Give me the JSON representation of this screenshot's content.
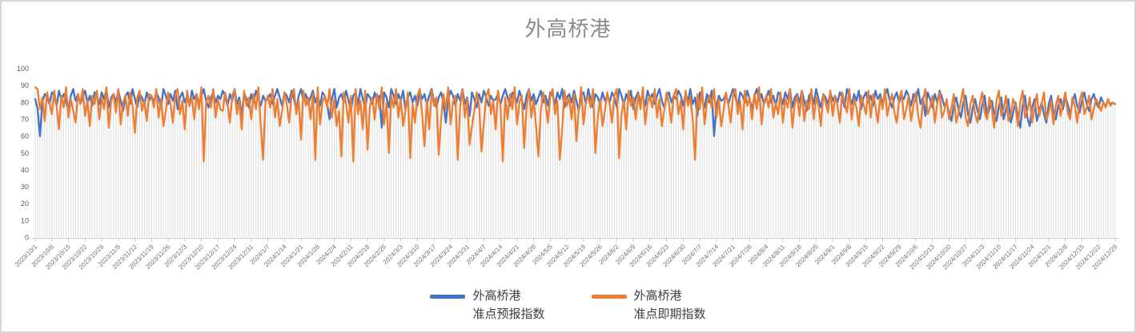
{
  "title": "外高桥港",
  "chart_data": {
    "type": "line",
    "title": "外高桥港",
    "xlabel": "",
    "ylabel": "",
    "ylim": [
      0,
      100
    ],
    "y_ticks": [
      0,
      10,
      20,
      30,
      40,
      50,
      60,
      70,
      80,
      90,
      100
    ],
    "grid": "vertical-droplines-per-point",
    "legend_position": "bottom",
    "x_frequency": "daily",
    "x_tick_interval_days": 7,
    "x_tick_labels": [
      "2023/10/1",
      "2023/10/8",
      "2023/10/15",
      "2023/10/22",
      "2023/10/29",
      "2023/11/5",
      "2023/11/12",
      "2023/11/19",
      "2023/11/26",
      "2023/12/3",
      "2023/12/10",
      "2023/12/17",
      "2023/12/24",
      "2023/12/31",
      "2024/1/7",
      "2024/1/14",
      "2024/1/21",
      "2024/1/28",
      "2024/2/4",
      "2024/2/11",
      "2024/2/18",
      "2024/2/25",
      "2024/3/3",
      "2024/3/10",
      "2024/3/17",
      "2024/3/24",
      "2024/3/31",
      "2024/4/7",
      "2024/4/14",
      "2024/4/21",
      "2024/4/28",
      "2024/5/5",
      "2024/5/12",
      "2024/5/19",
      "2024/5/26",
      "2024/6/2",
      "2024/6/9",
      "2024/6/16",
      "2024/6/23",
      "2024/6/30",
      "2024/7/7",
      "2024/7/14",
      "2024/7/21",
      "2024/7/28",
      "2024/8/4",
      "2024/8/11",
      "2024/8/18",
      "2024/8/25",
      "2024/9/1",
      "2024/9/8",
      "2024/9/15",
      "2024/9/22",
      "2024/9/29",
      "2024/10/6",
      "2024/10/13",
      "2024/10/20",
      "2024/10/27",
      "2024/11/3",
      "2024/11/10",
      "2024/11/17",
      "2024/11/24",
      "2024/12/1",
      "2024/12/8",
      "2024/12/15",
      "2024/12/22",
      "2024/12/29"
    ],
    "series": [
      {
        "name": "外高桥港 准点预报指数",
        "legend_line1": "外高桥港",
        "legend_line2": "准点预报指数",
        "color": "#4472C4",
        "values": [
          82,
          76,
          60,
          80,
          85,
          83,
          79,
          86,
          84,
          78,
          87,
          82,
          85,
          80,
          76,
          84,
          88,
          81,
          85,
          79,
          83,
          87,
          80,
          84,
          78,
          86,
          84,
          79,
          86,
          82,
          88,
          77,
          83,
          85,
          80,
          87,
          81,
          75,
          84,
          86,
          79,
          88,
          82,
          77,
          85,
          83,
          79,
          86,
          81,
          84,
          80,
          86,
          83,
          77,
          88,
          84,
          79,
          85,
          81,
          87,
          76,
          83,
          86,
          80,
          84,
          78,
          87,
          82,
          85,
          79,
          84,
          88,
          81,
          77,
          83,
          86,
          80,
          84,
          82,
          87,
          84,
          78,
          85,
          81,
          88,
          79,
          83,
          72,
          86,
          82,
          77,
          85,
          80,
          87,
          83,
          78,
          84,
          81,
          82,
          85,
          79,
          84,
          88,
          83,
          78,
          86,
          84,
          80,
          87,
          82,
          76,
          84,
          88,
          81,
          85,
          79,
          83,
          87,
          80,
          84,
          78,
          86,
          84,
          79,
          70,
          82,
          88,
          77,
          83,
          85,
          80,
          87,
          81,
          75,
          84,
          86,
          79,
          88,
          82,
          77,
          85,
          83,
          79,
          86,
          81,
          84,
          65,
          86,
          83,
          77,
          88,
          84,
          79,
          85,
          81,
          87,
          76,
          83,
          86,
          80,
          84,
          78,
          87,
          82,
          85,
          79,
          84,
          88,
          81,
          77,
          83,
          86,
          80,
          68,
          82,
          87,
          84,
          78,
          85,
          81,
          88,
          79,
          83,
          72,
          86,
          82,
          77,
          85,
          80,
          87,
          83,
          78,
          84,
          81,
          82,
          85,
          79,
          84,
          88,
          83,
          78,
          86,
          84,
          80,
          87,
          82,
          76,
          84,
          88,
          81,
          85,
          79,
          83,
          87,
          80,
          84,
          78,
          86,
          84,
          79,
          86,
          82,
          88,
          77,
          83,
          85,
          80,
          87,
          81,
          75,
          84,
          86,
          79,
          88,
          82,
          77,
          85,
          83,
          79,
          86,
          81,
          84,
          80,
          86,
          83,
          77,
          88,
          84,
          79,
          85,
          81,
          87,
          76,
          83,
          86,
          80,
          84,
          78,
          87,
          82,
          85,
          79,
          84,
          88,
          81,
          77,
          83,
          86,
          80,
          84,
          82,
          87,
          84,
          78,
          85,
          81,
          88,
          79,
          83,
          72,
          86,
          82,
          77,
          85,
          80,
          87,
          60,
          78,
          84,
          81,
          82,
          85,
          79,
          84,
          88,
          83,
          78,
          86,
          84,
          80,
          87,
          82,
          76,
          84,
          88,
          81,
          85,
          79,
          83,
          87,
          80,
          84,
          78,
          86,
          84,
          79,
          86,
          82,
          88,
          77,
          83,
          85,
          80,
          87,
          81,
          75,
          84,
          86,
          79,
          88,
          82,
          77,
          85,
          83,
          79,
          86,
          81,
          84,
          80,
          86,
          83,
          77,
          88,
          84,
          79,
          85,
          81,
          87,
          76,
          83,
          86,
          80,
          84,
          78,
          87,
          82,
          85,
          79,
          84,
          88,
          81,
          77,
          83,
          86,
          80,
          84,
          82,
          87,
          84,
          78,
          85,
          81,
          88,
          79,
          83,
          72,
          86,
          82,
          77,
          85,
          80,
          87,
          83,
          78,
          80,
          74,
          69,
          78,
          83,
          76,
          71,
          80,
          84,
          73,
          68,
          77,
          82,
          75,
          70,
          79,
          84,
          72,
          76,
          81,
          74,
          69,
          78,
          83,
          70,
          76,
          82,
          68,
          74,
          80,
          72,
          65,
          78,
          84,
          71,
          66,
          77,
          82,
          69,
          75,
          80,
          73,
          68,
          79,
          84,
          74,
          70,
          78,
          82,
          76,
          84,
          79,
          73,
          80,
          85,
          78,
          74,
          81,
          86,
          79,
          75,
          82,
          85,
          80,
          77,
          83,
          80,
          78,
          81,
          79,
          80,
          79
        ]
      },
      {
        "name": "外高桥港 准点即期指数",
        "legend_line1": "外高桥港",
        "legend_line2": "准点即期指数",
        "color": "#ED7D31",
        "values": [
          89,
          88,
          76,
          83,
          69,
          86,
          80,
          73,
          87,
          78,
          64,
          84,
          77,
          89,
          71,
          82,
          75,
          68,
          85,
          79,
          88,
          72,
          81,
          66,
          84,
          79,
          87,
          70,
          83,
          76,
          89,
          65,
          81,
          85,
          74,
          88,
          67,
          80,
          84,
          72,
          86,
          78,
          62,
          83,
          87,
          75,
          81,
          69,
          85,
          84,
          77,
          88,
          71,
          82,
          66,
          75,
          86,
          79,
          68,
          84,
          88,
          73,
          81,
          64,
          87,
          78,
          83,
          70,
          85,
          76,
          89,
          45,
          80,
          84,
          77,
          88,
          71,
          82,
          76,
          75,
          86,
          79,
          68,
          84,
          88,
          73,
          81,
          64,
          87,
          78,
          83,
          70,
          85,
          76,
          89,
          67,
          46,
          80,
          84,
          77,
          88,
          71,
          82,
          66,
          75,
          86,
          79,
          68,
          84,
          88,
          73,
          81,
          58,
          87,
          78,
          83,
          70,
          85,
          46,
          89,
          67,
          80,
          84,
          77,
          88,
          71,
          82,
          66,
          75,
          48,
          86,
          79,
          68,
          84,
          45,
          88,
          73,
          81,
          64,
          87,
          52,
          78,
          83,
          70,
          85,
          76,
          89,
          67,
          80,
          50,
          84,
          77,
          88,
          71,
          82,
          66,
          75,
          86,
          47,
          79,
          68,
          84,
          88,
          73,
          54,
          81,
          64,
          87,
          78,
          83,
          49,
          70,
          85,
          76,
          89,
          67,
          80,
          84,
          46,
          77,
          88,
          71,
          82,
          55,
          66,
          75,
          86,
          79,
          51,
          68,
          84,
          88,
          73,
          81,
          64,
          87,
          78,
          45,
          83,
          70,
          85,
          76,
          89,
          67,
          80,
          84,
          53,
          77,
          88,
          71,
          82,
          66,
          48,
          75,
          86,
          79,
          68,
          84,
          88,
          73,
          81,
          46,
          64,
          87,
          78,
          83,
          70,
          85,
          57,
          76,
          89,
          67,
          80,
          84,
          77,
          88,
          50,
          71,
          82,
          66,
          75,
          86,
          79,
          68,
          84,
          88,
          47,
          73,
          81,
          64,
          87,
          78,
          83,
          70,
          85,
          76,
          89,
          67,
          80,
          84,
          77,
          88,
          71,
          82,
          66,
          75,
          86,
          79,
          68,
          84,
          88,
          73,
          81,
          64,
          87,
          78,
          83,
          70,
          46,
          85,
          76,
          89,
          67,
          80,
          84,
          77,
          88,
          71,
          82,
          66,
          75,
          86,
          79,
          68,
          84,
          88,
          73,
          81,
          64,
          87,
          78,
          83,
          70,
          85,
          76,
          89,
          67,
          80,
          84,
          77,
          88,
          71,
          80,
          73,
          86,
          68,
          82,
          77,
          88,
          65,
          79,
          84,
          72,
          87,
          69,
          81,
          76,
          88,
          70,
          83,
          78,
          66,
          85,
          80,
          74,
          87,
          72,
          84,
          78,
          68,
          86,
          80,
          74,
          88,
          70,
          82,
          77,
          66,
          84,
          79,
          73,
          87,
          71,
          85,
          78,
          68,
          83,
          76,
          88,
          72,
          80,
          85,
          74,
          68,
          82,
          87,
          70,
          76,
          84,
          69,
          78,
          86,
          72,
          65,
          81,
          88,
          73,
          77,
          84,
          68,
          79,
          86,
          71,
          75,
          82,
          70,
          77,
          85,
          68,
          74,
          81,
          88,
          71,
          66,
          79,
          84,
          73,
          68,
          80,
          86,
          74,
          70,
          83,
          77,
          65,
          81,
          87,
          72,
          76,
          84,
          69,
          73,
          82,
          78,
          66,
          80,
          87,
          71,
          75,
          83,
          68,
          77,
          85,
          72,
          79,
          86,
          70,
          74,
          81,
          67,
          78,
          84,
          72,
          80,
          86,
          74,
          70,
          83,
          78,
          68,
          81,
          86,
          73,
          77,
          84,
          70,
          76,
          82,
          79,
          75,
          80,
          77,
          82,
          78,
          80,
          79
        ]
      }
    ],
    "colors": {
      "dropline": "#dcdcdc",
      "axis_line": "#d0d0d0",
      "tick": "#c6c6c6",
      "axis_label": "#595959",
      "x_label": "#6e6e6e",
      "title": "#8a8a8a"
    }
  }
}
